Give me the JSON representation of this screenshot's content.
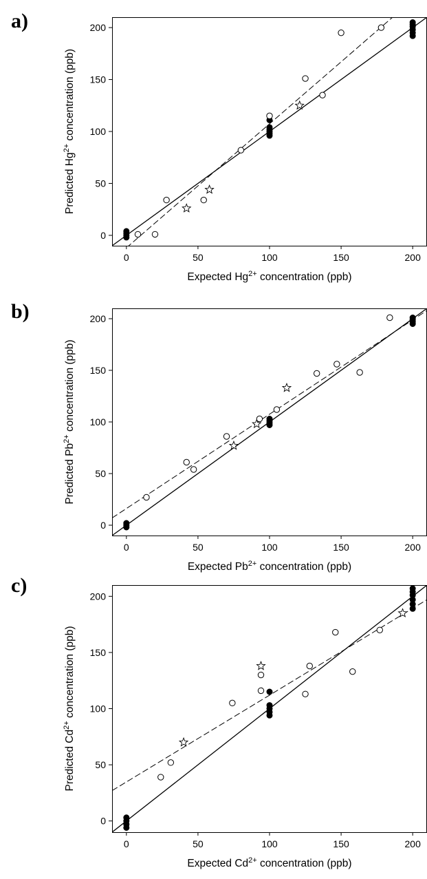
{
  "chart_data": [
    {
      "type": "scatter",
      "panel": "a)",
      "xlabel": {
        "pre": "Expected Hg",
        "sup": "2+",
        "post": " concentration (ppb)"
      },
      "ylabel": {
        "pre": "Predicted Hg",
        "sup": "2+",
        "post": " concentration (ppb)"
      },
      "xlim": [
        -10,
        210
      ],
      "ylim": [
        -10,
        210
      ],
      "xticks": [
        0,
        50,
        100,
        150,
        200
      ],
      "yticks": [
        0,
        50,
        100,
        150,
        200
      ],
      "grid": false,
      "lines": [
        {
          "style": "solid",
          "x": [
            -10,
            210
          ],
          "y": [
            -10,
            210
          ]
        },
        {
          "style": "dashed",
          "x": [
            0,
            186
          ],
          "y": [
            -12,
            210
          ]
        }
      ],
      "series": [
        {
          "marker": "filled-circle",
          "points": [
            [
              0,
              -2
            ],
            [
              0,
              0
            ],
            [
              0,
              2
            ],
            [
              0,
              4
            ],
            [
              100,
              96
            ],
            [
              100,
              98
            ],
            [
              100,
              100
            ],
            [
              100,
              102
            ],
            [
              100,
              104
            ],
            [
              100,
              111
            ],
            [
              200,
              192
            ],
            [
              200,
              195
            ],
            [
              200,
              198
            ],
            [
              200,
              201
            ],
            [
              200,
              203
            ],
            [
              200,
              205
            ]
          ]
        },
        {
          "marker": "open-circle",
          "points": [
            [
              8,
              1
            ],
            [
              20,
              1
            ],
            [
              28,
              34
            ],
            [
              54,
              34
            ],
            [
              80,
              82
            ],
            [
              100,
              115
            ],
            [
              125,
              151
            ],
            [
              137,
              135
            ],
            [
              150,
              195
            ],
            [
              178,
              200
            ]
          ]
        },
        {
          "marker": "open-star",
          "points": [
            [
              42,
              26
            ],
            [
              58,
              44
            ],
            [
              121,
              125
            ]
          ]
        }
      ]
    },
    {
      "type": "scatter",
      "panel": "b)",
      "xlabel": {
        "pre": "Expected Pb",
        "sup": "2+",
        "post": " concentration (ppb)"
      },
      "ylabel": {
        "pre": "Predicted Pb",
        "sup": "2+",
        "post": " concentration (ppb)"
      },
      "xlim": [
        -10,
        210
      ],
      "ylim": [
        -10,
        210
      ],
      "xticks": [
        0,
        50,
        100,
        150,
        200
      ],
      "yticks": [
        0,
        50,
        100,
        150,
        200
      ],
      "grid": false,
      "lines": [
        {
          "style": "solid",
          "x": [
            -10,
            210
          ],
          "y": [
            -10,
            210
          ]
        },
        {
          "style": "dashed",
          "x": [
            -10,
            210
          ],
          "y": [
            7,
            208
          ]
        }
      ],
      "series": [
        {
          "marker": "filled-circle",
          "points": [
            [
              0,
              -2
            ],
            [
              0,
              0
            ],
            [
              0,
              2
            ],
            [
              100,
              97
            ],
            [
              100,
              99
            ],
            [
              100,
              101
            ],
            [
              100,
              103
            ],
            [
              200,
              195
            ],
            [
              200,
              197
            ],
            [
              200,
              199
            ],
            [
              200,
              201
            ]
          ]
        },
        {
          "marker": "open-circle",
          "points": [
            [
              14,
              27
            ],
            [
              42,
              61
            ],
            [
              47,
              54
            ],
            [
              70,
              86
            ],
            [
              93,
              103
            ],
            [
              105,
              112
            ],
            [
              133,
              147
            ],
            [
              147,
              156
            ],
            [
              163,
              148
            ],
            [
              184,
              201
            ]
          ]
        },
        {
          "marker": "open-star",
          "points": [
            [
              75,
              77
            ],
            [
              91,
              98
            ],
            [
              112,
              133
            ]
          ]
        }
      ]
    },
    {
      "type": "scatter",
      "panel": "c)",
      "xlabel": {
        "pre": "Expected Cd",
        "sup": "2+",
        "post": " concentration (ppb)"
      },
      "ylabel": {
        "pre": "Predicted Cd",
        "sup": "2+",
        "post": " concentration (ppb)"
      },
      "xlim": [
        -10,
        210
      ],
      "ylim": [
        -10,
        210
      ],
      "xticks": [
        0,
        50,
        100,
        150,
        200
      ],
      "yticks": [
        0,
        50,
        100,
        150,
        200
      ],
      "grid": false,
      "lines": [
        {
          "style": "solid",
          "x": [
            -10,
            210
          ],
          "y": [
            -10,
            210
          ]
        },
        {
          "style": "dashed",
          "x": [
            -10,
            210
          ],
          "y": [
            27,
            197
          ]
        }
      ],
      "series": [
        {
          "marker": "filled-circle",
          "points": [
            [
              0,
              -6
            ],
            [
              0,
              -3
            ],
            [
              0,
              0
            ],
            [
              0,
              3
            ],
            [
              100,
              94
            ],
            [
              100,
              97
            ],
            [
              100,
              100
            ],
            [
              100,
              103
            ],
            [
              100,
              115
            ],
            [
              200,
              189
            ],
            [
              200,
              193
            ],
            [
              200,
              197
            ],
            [
              200,
              201
            ],
            [
              200,
              204
            ],
            [
              200,
              207
            ]
          ]
        },
        {
          "marker": "open-circle",
          "points": [
            [
              24,
              39
            ],
            [
              31,
              52
            ],
            [
              74,
              105
            ],
            [
              94,
              130
            ],
            [
              94,
              116
            ],
            [
              125,
              113
            ],
            [
              128,
              138
            ],
            [
              146,
              168
            ],
            [
              158,
              133
            ],
            [
              177,
              170
            ]
          ]
        },
        {
          "marker": "open-star",
          "points": [
            [
              40,
              70
            ],
            [
              94,
              138
            ],
            [
              193,
              185
            ]
          ]
        }
      ]
    }
  ]
}
